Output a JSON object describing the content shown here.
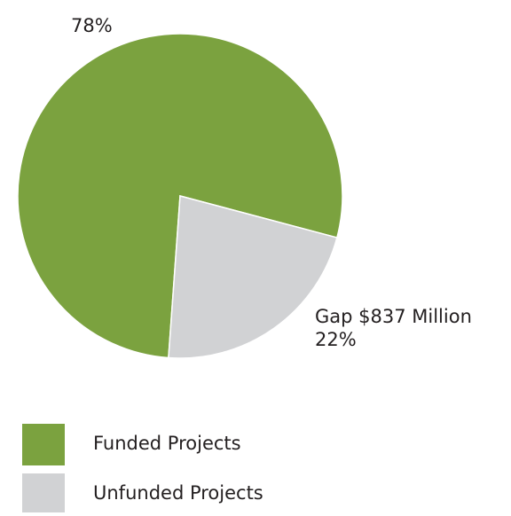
{
  "chart_data": {
    "type": "pie",
    "categories": [
      "Funded Projects",
      "Unfunded Projects"
    ],
    "values": [
      78,
      22
    ],
    "value_labels": [
      "78%",
      "22%"
    ],
    "colors": [
      "#7ba23f",
      "#d1d2d4"
    ],
    "annotations": [
      "Gap $837 Million"
    ]
  }
}
